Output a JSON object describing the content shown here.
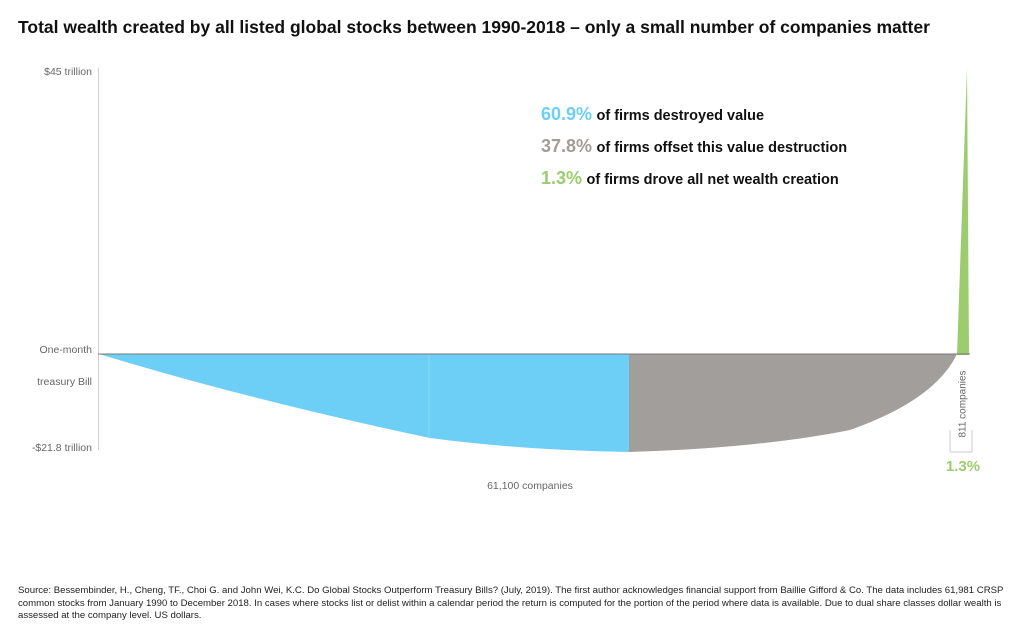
{
  "title": "Total wealth created by all listed global stocks between 1990-2018 – only a small number of companies matter",
  "y_axis": {
    "top_label": "$45 trillion",
    "zero_label_line1": "One-month",
    "zero_label_line2": "treasury Bill",
    "bottom_label": "-$21.8 trillion"
  },
  "legend": [
    {
      "pct": "60.9%",
      "text": "of firms destroyed value",
      "color": "#6dcff6"
    },
    {
      "pct": "37.8%",
      "text": "of firms offset this value destruction",
      "color": "#a19e9b"
    },
    {
      "pct": "1.3%",
      "text": "of firms drove all net wealth creation",
      "color": "#9bcc6e"
    }
  ],
  "x_label": "61,100 companies",
  "bracket_label": "811 companies",
  "bracket_pct": "1.3%",
  "source": "Source: Bessembinder, H., Cheng, TF., Choi G. and John Wei, K.C. Do Global Stocks Outperform Treasury Bills? (July, 2019). The first author acknowledges financial support from Baillie Gifford & Co. The data includes 61,981 CRSP common stocks from January 1990 to December 2018. In cases where stocks list or delist within a calendar period the return is computed for the portion of the period where data is available. Due to dual share classes dollar wealth is assessed at the company level. US dollars.",
  "chart_data": {
    "type": "area",
    "title": "Total wealth created by all listed global stocks between 1990-2018 – only a small number of companies matter",
    "ylim": [
      -21.8,
      45
    ],
    "y_unit": "trillion USD",
    "yticks": [
      "$45 trillion",
      "One-month treasury Bill",
      "-$21.8 trillion"
    ],
    "segments": [
      {
        "name": "60.9% of firms destroyed value",
        "share_pct": 60.9,
        "color": "#6dcff6"
      },
      {
        "name": "37.8% of firms offset this value destruction",
        "share_pct": 37.8,
        "color": "#a19e9b"
      },
      {
        "name": "1.3% of firms drove all net wealth creation",
        "share_pct": 1.3,
        "companies": 811,
        "color": "#9bcc6e"
      }
    ],
    "total_companies_label": "61,100 companies",
    "min_cumulative_wealth": -21.8,
    "max_cumulative_wealth": 45,
    "grid": false,
    "legend_position": "top-right"
  }
}
